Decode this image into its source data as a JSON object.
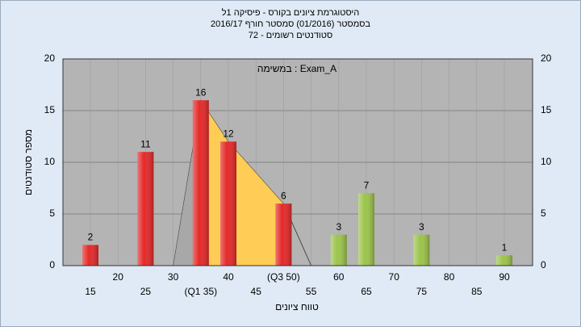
{
  "chart_data": {
    "type": "bar",
    "title": "היסטוגרמת ציונים בקורס - פיסיקה 1ל",
    "subtitle": "בסמסטר  (01/2016)  סמסטר חורף 2016/17",
    "subtitle2": "סטודנטים רשומים - 72",
    "annotation": "במשימה : Exam_A",
    "ylabel": "מספר סטודנטים",
    "xlabel": "טווח ציונים",
    "categories": [
      "15",
      "20",
      "25",
      "30",
      "(Q1 35)",
      "40",
      "45",
      "(Q3 50)",
      "55",
      "60",
      "65",
      "70",
      "75",
      "80",
      "85",
      "90"
    ],
    "values": [
      2,
      null,
      11,
      null,
      16,
      12,
      null,
      6,
      null,
      3,
      7,
      null,
      3,
      null,
      null,
      1
    ],
    "colors": [
      "#e42a2a",
      null,
      "#e42a2a",
      null,
      "#e42a2a",
      "#e42a2a",
      null,
      "#e42a2a",
      null,
      "#9cc44c",
      "#9cc44c",
      null,
      "#9cc44c",
      null,
      null,
      "#9cc44c"
    ],
    "ylim": [
      0,
      20
    ],
    "yticks": [
      0,
      5,
      10,
      15,
      20
    ],
    "grid": true
  }
}
